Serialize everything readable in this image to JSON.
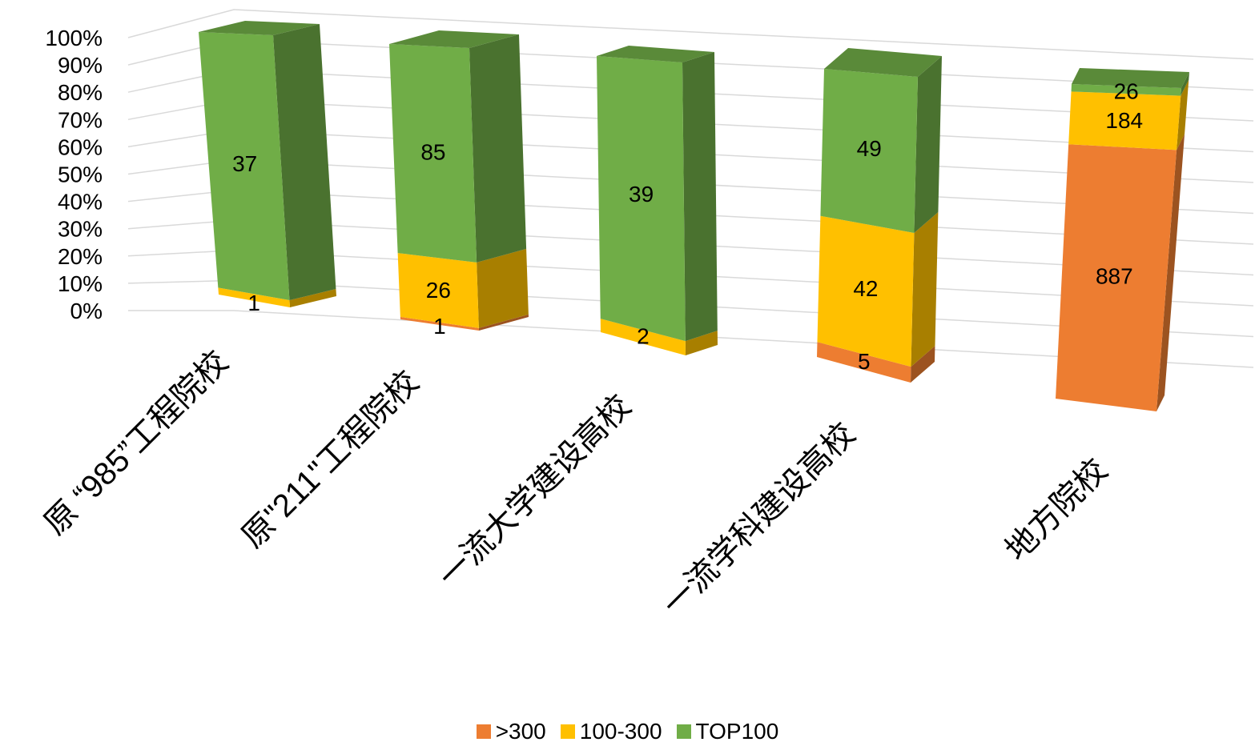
{
  "chart_data": {
    "type": "bar",
    "stacked": "percent",
    "style": "3d-column",
    "categories": [
      "原 “985”工程院校",
      "原\"211\"工程院校",
      "一流大学建设高校",
      "一流学科建设高校",
      "地方院校"
    ],
    "series": [
      {
        "name": ">300",
        "color": "#ED7D31",
        "values": [
          0,
          1,
          0,
          5,
          887
        ]
      },
      {
        "name": "100-300",
        "color": "#FFC000",
        "values": [
          1,
          26,
          2,
          42,
          184
        ]
      },
      {
        "name": "TOP100",
        "color": "#70AD47",
        "values": [
          37,
          85,
          39,
          49,
          26
        ]
      }
    ],
    "yticks": [
      "0%",
      "10%",
      "20%",
      "30%",
      "40%",
      "50%",
      "60%",
      "70%",
      "80%",
      "90%",
      "100%"
    ],
    "ylim": [
      0,
      100
    ],
    "grid": true,
    "legend_position": "bottom"
  }
}
